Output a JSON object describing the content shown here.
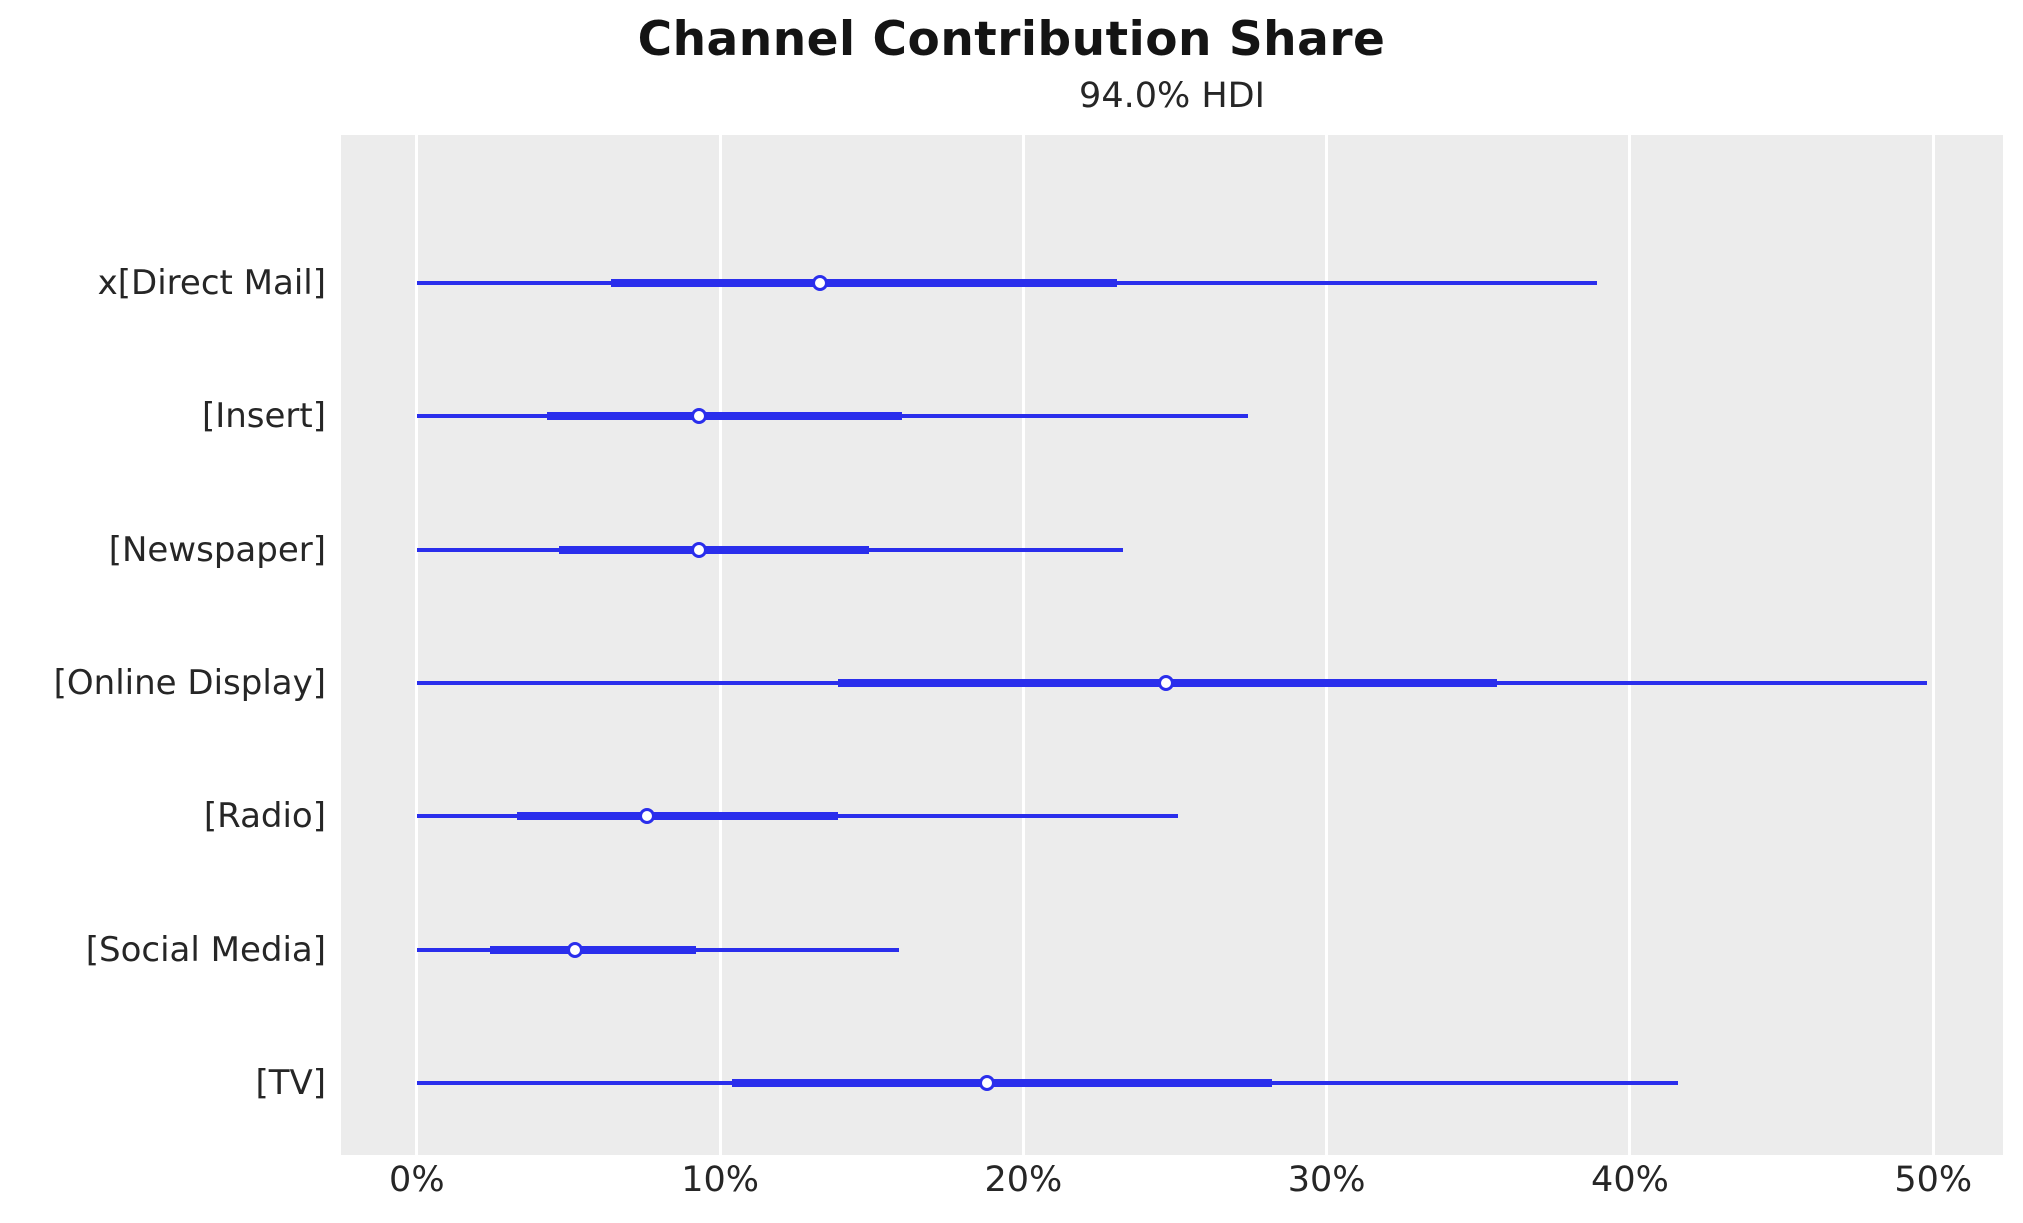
{
  "title": "Channel Contribution Share",
  "subtitle": "94.0% HDI",
  "colors": {
    "line": "#2a2eec",
    "plot_background": "#ececec",
    "gridline": "#ffffff",
    "text": "#262626",
    "title_text": "#141414"
  },
  "chart_data": {
    "type": "forest",
    "title": "Channel Contribution Share",
    "subtitle": "94.0% HDI",
    "hdi_prob": 0.94,
    "x_unit": "%",
    "xlim": [
      -2.5,
      52.3
    ],
    "grid": "vertical-only",
    "x_ticks": [
      {
        "value": 0,
        "label": "0%"
      },
      {
        "value": 10,
        "label": "10%"
      },
      {
        "value": 20,
        "label": "20%"
      },
      {
        "value": 30,
        "label": "30%"
      },
      {
        "value": 40,
        "label": "40%"
      },
      {
        "value": 50,
        "label": "50%"
      }
    ],
    "categories": [
      "x[Direct Mail]",
      "[Insert]",
      "[Newspaper]",
      "[Online Display]",
      "[Radio]",
      "[Social Media]",
      "[TV]"
    ],
    "rows": [
      {
        "label": "x[Direct Mail]",
        "hdi": [
          0.0,
          38.9
        ],
        "iqr": [
          6.4,
          23.1
        ],
        "median": 13.3
      },
      {
        "label": "[Insert]",
        "hdi": [
          0.0,
          27.4
        ],
        "iqr": [
          4.3,
          16.0
        ],
        "median": 9.3
      },
      {
        "label": "[Newspaper]",
        "hdi": [
          0.0,
          23.3
        ],
        "iqr": [
          4.7,
          14.9
        ],
        "median": 9.3
      },
      {
        "label": "[Online Display]",
        "hdi": [
          0.0,
          49.8
        ],
        "iqr": [
          13.9,
          35.6
        ],
        "median": 24.7
      },
      {
        "label": "[Radio]",
        "hdi": [
          0.0,
          25.1
        ],
        "iqr": [
          3.3,
          13.9
        ],
        "median": 7.6
      },
      {
        "label": "[Social Media]",
        "hdi": [
          0.0,
          15.9
        ],
        "iqr": [
          2.4,
          9.2
        ],
        "median": 5.2
      },
      {
        "label": "[TV]",
        "hdi": [
          0.0,
          41.6
        ],
        "iqr": [
          10.4,
          28.2
        ],
        "median": 18.8
      }
    ]
  }
}
